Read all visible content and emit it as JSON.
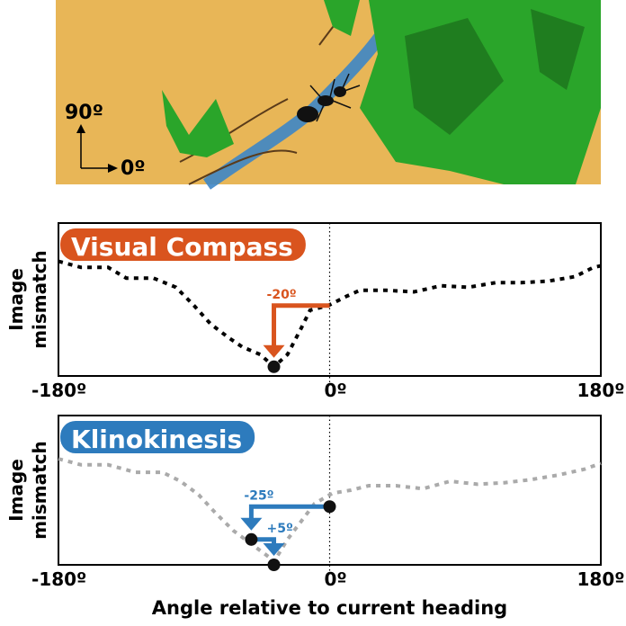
{
  "scene": {
    "north_label": "90º",
    "east_label": "0º"
  },
  "chart_data": [
    {
      "type": "line",
      "title": "Visual Compass",
      "title_color": "#d9541e",
      "ylabel": [
        "Image",
        "mismatch"
      ],
      "xlim": [
        -180,
        180
      ],
      "ylim": [
        0,
        1
      ],
      "xticks": [
        {
          "value": -180,
          "label": "-180º"
        },
        {
          "value": 0,
          "label": "0º"
        },
        {
          "value": 180,
          "label": "180º"
        }
      ],
      "series": [
        {
          "color": "#000000",
          "x": [
            -180,
            -165,
            -147,
            -135,
            -117,
            -102,
            -90,
            -79,
            -67,
            -58,
            -46,
            -37,
            -28,
            -19,
            -13,
            -1,
            11,
            20,
            38,
            56,
            74,
            92,
            110,
            127,
            145,
            163,
            175,
            180
          ],
          "values": [
            0.75,
            0.71,
            0.71,
            0.64,
            0.64,
            0.58,
            0.46,
            0.34,
            0.25,
            0.19,
            0.14,
            0.06,
            0.14,
            0.31,
            0.43,
            0.46,
            0.52,
            0.56,
            0.56,
            0.55,
            0.59,
            0.58,
            0.61,
            0.61,
            0.62,
            0.65,
            0.71,
            0.72
          ]
        }
      ],
      "markers": [
        {
          "x": -37,
          "y": 0.06
        }
      ],
      "arrows": [
        {
          "color": "#d9541e",
          "from": [
            0,
            0.46
          ],
          "to": [
            -37,
            0.06
          ],
          "label": "-20º"
        }
      ]
    },
    {
      "type": "line",
      "title": "Klinokinesis",
      "title_color": "#2d7bbd",
      "ylabel": [
        "Image",
        "mismatch"
      ],
      "xlabel": "Angle relative to current heading",
      "xlim": [
        -180,
        180
      ],
      "ylim": [
        0,
        1
      ],
      "xticks": [
        {
          "value": -180,
          "label": "-180º"
        },
        {
          "value": 0,
          "label": "0º"
        },
        {
          "value": 180,
          "label": "180º"
        }
      ],
      "series": [
        {
          "color": "#aaaaaa",
          "x": [
            -180,
            -165,
            -147,
            -129,
            -111,
            -99,
            -87,
            -76,
            -64,
            -52,
            -40,
            -37,
            -28,
            -19,
            -10,
            2,
            14,
            26,
            44,
            62,
            80,
            98,
            116,
            133,
            151,
            169,
            180
          ],
          "values": [
            0.71,
            0.67,
            0.67,
            0.62,
            0.62,
            0.56,
            0.47,
            0.35,
            0.23,
            0.14,
            0.05,
            0.02,
            0.17,
            0.29,
            0.41,
            0.48,
            0.5,
            0.53,
            0.53,
            0.51,
            0.56,
            0.54,
            0.55,
            0.57,
            0.6,
            0.64,
            0.68
          ]
        }
      ],
      "markers": [
        {
          "x": 0,
          "y": 0.39
        },
        {
          "x": -52,
          "y": 0.17
        },
        {
          "x": -37,
          "y": 0
        }
      ],
      "arrows": [
        {
          "color": "#2d7bbd",
          "from": [
            0,
            0.39
          ],
          "to": [
            -52,
            0.17
          ],
          "label": "-25º"
        },
        {
          "color": "#2d7bbd",
          "from": [
            -52,
            0.17
          ],
          "to": [
            -37,
            0
          ],
          "label": "+5º"
        }
      ]
    }
  ]
}
